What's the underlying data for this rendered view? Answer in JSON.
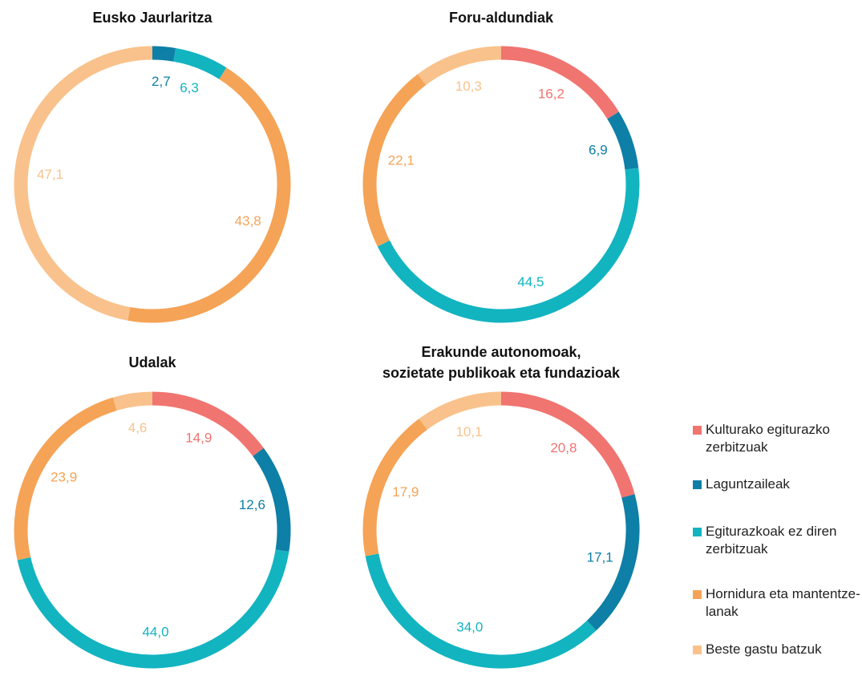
{
  "chart_data": [
    {
      "type": "pie",
      "title": "Eusko Jaurlaritza",
      "categories": [
        "Laguntzaileak",
        "Egiturazkoak ez diren zerbitzuak",
        "Hornidura eta mantentze-lanak",
        "Beste gastu batzuk"
      ],
      "values": [
        2.7,
        6.3,
        43.8,
        47.1
      ],
      "value_labels": [
        "2,7",
        "6,3",
        "43,8",
        "47,1"
      ],
      "colors": [
        "#0e7fa6",
        "#12b4c0",
        "#f5a356",
        "#f9c28c"
      ]
    },
    {
      "type": "pie",
      "title": "Foru-aldundiak",
      "categories": [
        "Kulturako egiturazko zerbitzuak",
        "Laguntzaileak",
        "Egiturazkoak ez diren zerbitzuak",
        "Hornidura eta mantentze-lanak",
        "Beste gastu batzuk"
      ],
      "values": [
        16.2,
        6.9,
        44.5,
        22.1,
        10.3
      ],
      "value_labels": [
        "16,2",
        "6,9",
        "44,5",
        "22,1",
        "10,3"
      ],
      "colors": [
        "#f07470",
        "#0e7fa6",
        "#12b4c0",
        "#f5a356",
        "#f9c28c"
      ]
    },
    {
      "type": "pie",
      "title": "Udalak",
      "categories": [
        "Kulturako egiturazko zerbitzuak",
        "Laguntzaileak",
        "Egiturazkoak ez diren zerbitzuak",
        "Hornidura eta mantentze-lanak",
        "Beste gastu batzuk"
      ],
      "values": [
        14.9,
        12.6,
        44.0,
        23.9,
        4.6
      ],
      "value_labels": [
        "14,9",
        "12,6",
        "44,0",
        "23,9",
        "4,6"
      ],
      "colors": [
        "#f07470",
        "#0e7fa6",
        "#12b4c0",
        "#f5a356",
        "#f9c28c"
      ]
    },
    {
      "type": "pie",
      "title": "Erakunde autonomoak,\nsozietate publikoak eta fundazioak",
      "categories": [
        "Kulturako egiturazko zerbitzuak",
        "Laguntzaileak",
        "Egiturazkoak ez diren zerbitzuak",
        "Hornidura eta mantentze-lanak",
        "Beste gastu batzuk"
      ],
      "values": [
        20.8,
        17.1,
        34.0,
        17.9,
        10.1
      ],
      "value_labels": [
        "20,8",
        "17,1",
        "34,0",
        "17,9",
        "10,1"
      ],
      "colors": [
        "#f07470",
        "#0e7fa6",
        "#12b4c0",
        "#f5a356",
        "#f9c28c"
      ],
      "legend": "right"
    }
  ]
}
